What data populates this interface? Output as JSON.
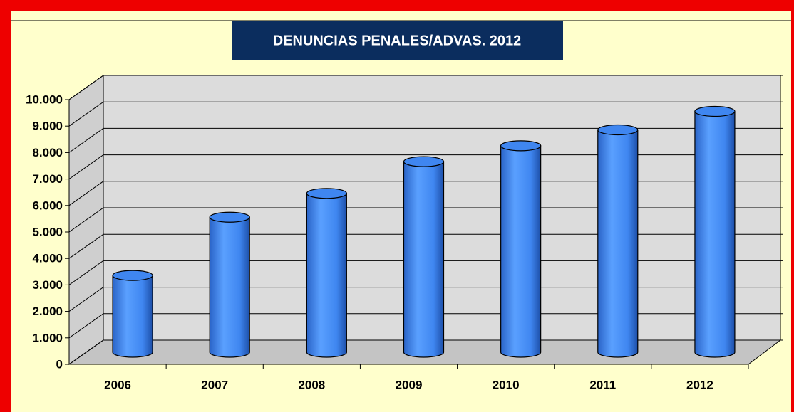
{
  "chart_data": {
    "type": "bar",
    "title": "DENUNCIAS PENALES/ADVAS. 2012",
    "categories": [
      "2006",
      "2007",
      "2008",
      "2009",
      "2010",
      "2011",
      "2012"
    ],
    "values": [
      2900,
      5100,
      6000,
      7200,
      7800,
      8400,
      9100
    ],
    "color": "#3f86f0",
    "ylim": [
      0,
      10000
    ],
    "yticks": [
      0,
      {
        "value": 1000,
        "label": "1.000"
      },
      {
        "value": 2000,
        "label": "2.000"
      },
      {
        "value": 3000,
        "label": "3.000"
      },
      {
        "value": 4000,
        "label": "4.000"
      },
      {
        "value": 5000,
        "label": "5.000"
      },
      {
        "value": 6000,
        "label": "6.000"
      },
      {
        "value": 7000,
        "label": "7.000"
      },
      {
        "value": 8000,
        "label": "8.000"
      },
      {
        "value": 9000,
        "label": "9.000"
      },
      {
        "value": 10000,
        "label": "10.000"
      }
    ],
    "grid": true
  }
}
